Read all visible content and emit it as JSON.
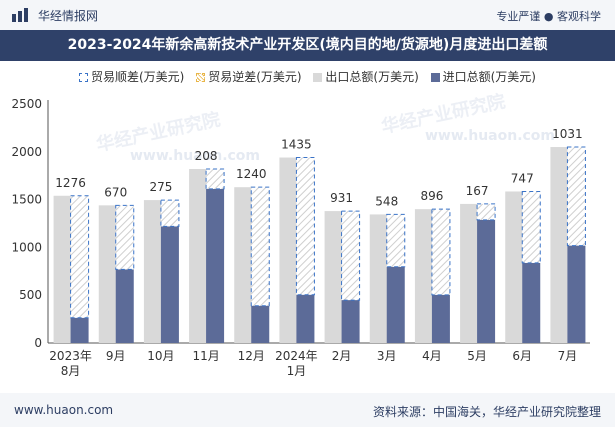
{
  "header": {
    "brand": "华经情报网",
    "tagline": "专业严谨 ● 客观科学"
  },
  "title": "2023-2024年新余高新技术产业开发区(境内目的地/货源地)月度进出口差额",
  "watermarks": {
    "text1": "华经产业研究院",
    "text2": "www.huaon.com"
  },
  "footer": {
    "site": "www.huaon.com",
    "source": "资料来源：中国海关，华经产业研究院整理"
  },
  "colors": {
    "export": "#d9d9d9",
    "import": "#5c6b98",
    "surplus": "#3a73c7",
    "deficit": "#e9b648",
    "title_bg": "#2f4169"
  },
  "chart_data": {
    "type": "bar",
    "title": "2023-2024年新余高新技术产业开发区(境内目的地/货源地)月度进出口差额",
    "categories": [
      "2023年\n8月",
      "9月",
      "10月",
      "11月",
      "12月",
      "2024年\n1月",
      "2月",
      "3月",
      "4月",
      "5月",
      "6月",
      "7月"
    ],
    "legend": [
      "贸易顺差(万美元)",
      "贸易逆差(万美元)",
      "出口总额(万美元)",
      "进口总额(万美元)"
    ],
    "ylim": [
      0,
      2500
    ],
    "yticks": [
      0,
      500,
      1000,
      1500,
      2000,
      2500
    ],
    "series": [
      {
        "name": "出口总额(万美元)",
        "values": [
          1540,
          1440,
          1495,
          1820,
          1630,
          1940,
          1380,
          1345,
          1400,
          1455,
          1585,
          2050
        ]
      },
      {
        "name": "进口总额(万美元)",
        "values": [
          264,
          770,
          1220,
          1612,
          390,
          505,
          449,
          797,
          504,
          1288,
          838,
          1019
        ]
      },
      {
        "name": "贸易顺差(万美元)",
        "values": [
          1276,
          670,
          275,
          208,
          1240,
          1435,
          931,
          548,
          896,
          167,
          747,
          1031
        ]
      }
    ],
    "data_labels": [
      "1276",
      "670",
      "275",
      "208",
      "1240",
      "1435",
      "931",
      "548",
      "896",
      "167",
      "747",
      "1031"
    ]
  }
}
